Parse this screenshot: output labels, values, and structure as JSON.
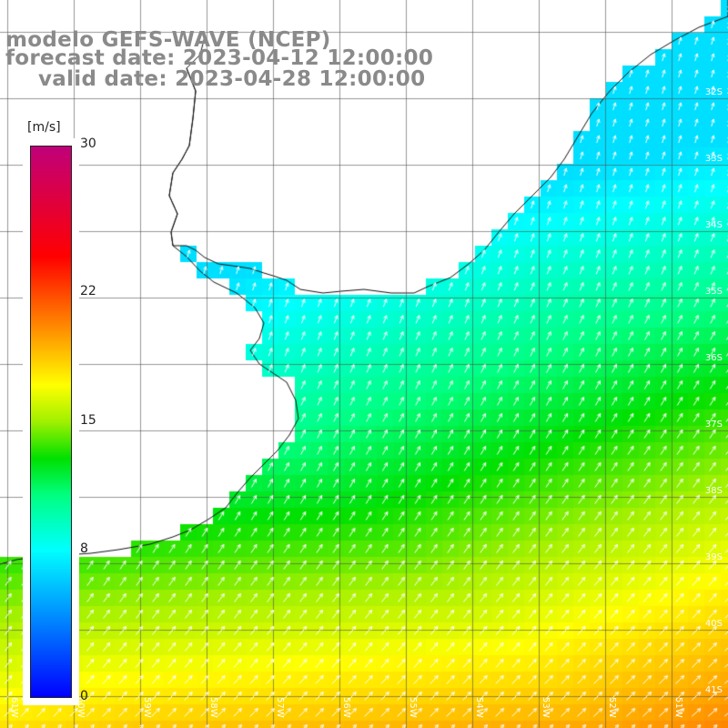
{
  "title": {
    "line1": "modelo GEFS-WAVE (NCEP)",
    "line2": "forecast date: 2023-04-12 12:00:00",
    "line3": "valid date: 2023-04-28 12:00:00"
  },
  "colorbar": {
    "units": "[m/s]",
    "min": 0,
    "max": 30,
    "ticks": [
      {
        "value": 30,
        "label": "30"
      },
      {
        "value": 22,
        "label": "22"
      },
      {
        "value": 15,
        "label": "15"
      },
      {
        "value": 8,
        "label": "8"
      },
      {
        "value": 0,
        "label": "0"
      }
    ],
    "stops": [
      {
        "value": 0,
        "color": "#0000ff"
      },
      {
        "value": 5,
        "color": "#00a0ff"
      },
      {
        "value": 8,
        "color": "#00ffff"
      },
      {
        "value": 11,
        "color": "#00ff80"
      },
      {
        "value": 13,
        "color": "#00e000"
      },
      {
        "value": 15,
        "color": "#a0f000"
      },
      {
        "value": 17,
        "color": "#ffff00"
      },
      {
        "value": 20,
        "color": "#ff9000"
      },
      {
        "value": 24,
        "color": "#ff0000"
      },
      {
        "value": 30,
        "color": "#c0007a"
      }
    ]
  },
  "map": {
    "lat_labels": [
      "32S",
      "33S",
      "34S",
      "35S",
      "36S",
      "37S",
      "38S",
      "39S",
      "40S",
      "41S"
    ],
    "lon_labels": [
      "61W",
      "60W",
      "59W",
      "58W",
      "57W",
      "56W",
      "55W",
      "54W",
      "53W",
      "52W",
      "51W"
    ],
    "wind_direction": "north-east",
    "speed_regions": [
      {
        "area": "coastal Rio de la Plata and southern Brazil coast",
        "speed_ms": 8
      },
      {
        "area": "central offshore",
        "speed_ms": 13
      },
      {
        "area": "south-east offshore",
        "speed_ms": 19
      }
    ]
  }
}
